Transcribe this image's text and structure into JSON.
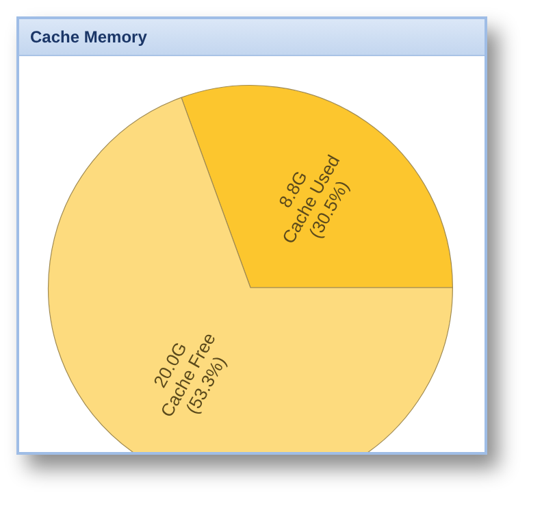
{
  "chart_data": {
    "type": "pie",
    "title": "Cache Memory",
    "categories": [
      "Cache Used",
      "Cache Free"
    ],
    "values": [
      8.8,
      20.0
    ],
    "annotations": [
      "(30.5%)",
      "(53.3%)"
    ],
    "value_labels": [
      "8.8G",
      "20.0G"
    ],
    "colors": [
      "#fcc62e",
      "#fddb7e"
    ],
    "data_labels": true,
    "legend": false
  }
}
